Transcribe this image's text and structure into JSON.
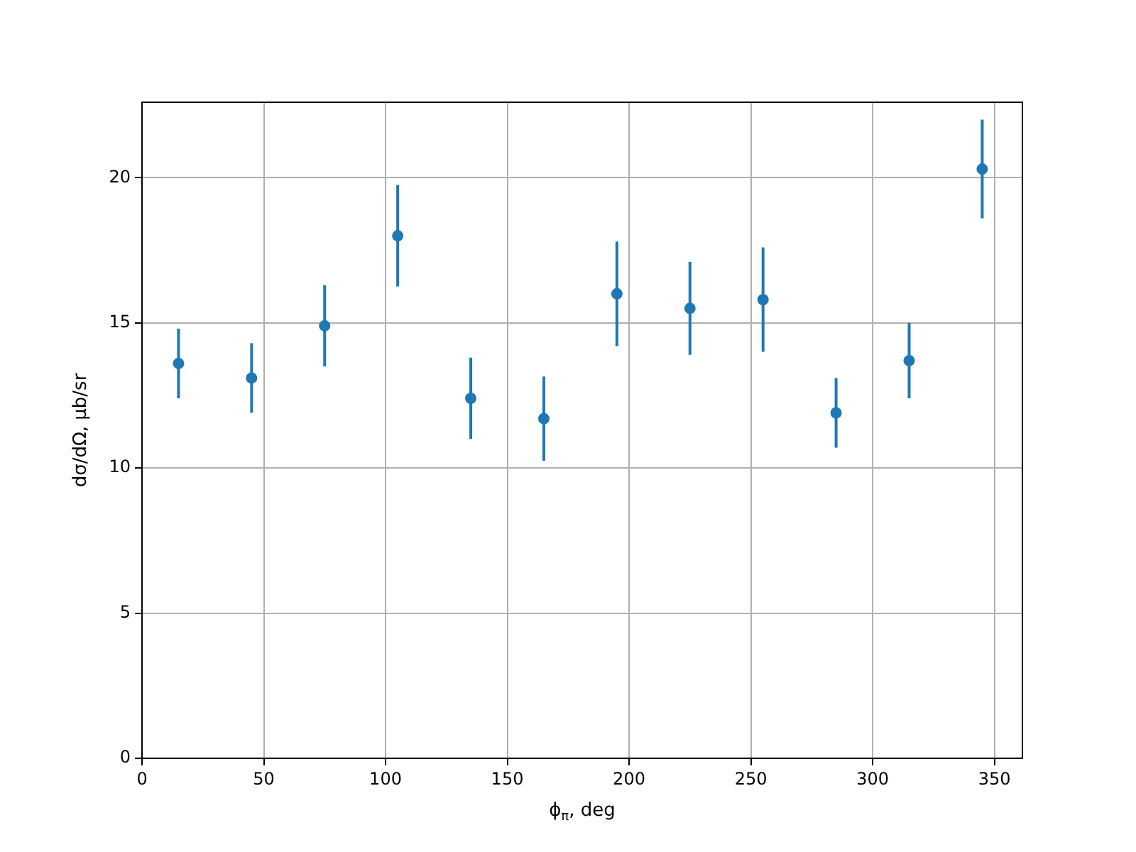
{
  "chart_data": {
    "type": "scatter",
    "xlabel": "ϕ$_{π}$, deg",
    "ylabel": "dσ/dΩ, μb/sr",
    "x": [
      15,
      45,
      75,
      105,
      135,
      165,
      195,
      225,
      255,
      285,
      315,
      345
    ],
    "series": [
      {
        "color": "#1f77b4",
        "values": [
          13.6,
          13.1,
          14.9,
          18.0,
          12.4,
          11.7,
          16.0,
          15.5,
          15.8,
          11.9,
          13.7,
          20.3
        ],
        "errors": [
          1.2,
          1.2,
          1.4,
          1.75,
          1.4,
          1.45,
          1.8,
          1.6,
          1.8,
          1.2,
          1.3,
          1.7
        ]
      }
    ],
    "xlim": [
      0,
      361.5
    ],
    "ylim": [
      0,
      22.6
    ],
    "xticks": [
      0,
      50,
      100,
      150,
      200,
      250,
      300,
      350
    ],
    "yticks": [
      0,
      5,
      10,
      15,
      20
    ],
    "grid": true,
    "legend": false,
    "marker": "circle"
  }
}
